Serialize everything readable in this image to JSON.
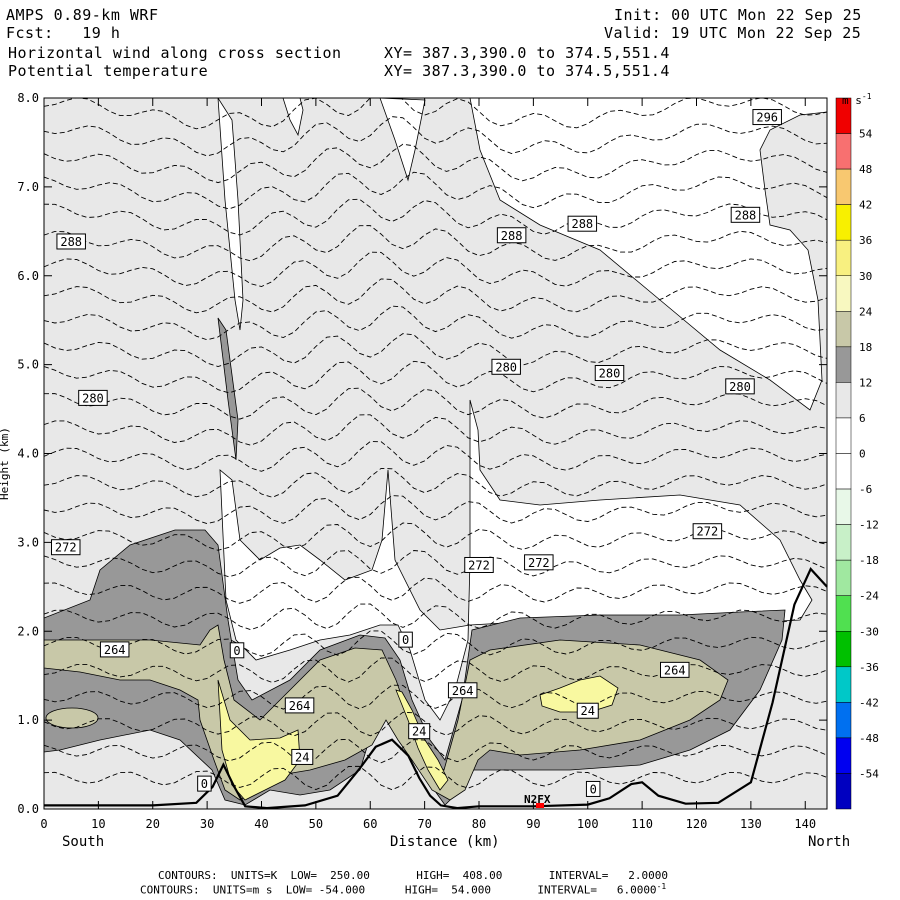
{
  "header": {
    "model": "AMPS 0.89-km WRF",
    "fcst": "Fcst:   19 h",
    "init": "Init: 00 UTC Mon 22 Sep 25",
    "valid": "Valid: 19 UTC Mon 22 Sep 25",
    "field1": "Horizontal wind along cross section",
    "field2": "Potential temperature",
    "xy1": "XY= 387.3,390.0 to 374.5,551.4",
    "xy2": "XY= 387.3,390.0 to 374.5,551.4"
  },
  "axis": {
    "xlabel": "Distance (km)",
    "left_end": "South",
    "right_end": "North",
    "ylabel": "Height (km)"
  },
  "colorbar": {
    "unit": "m s",
    "unit_exp": "-1",
    "labels": [
      "54",
      "48",
      "42",
      "36",
      "30",
      "24",
      "18",
      "12",
      "6",
      "0",
      "-6",
      "-12",
      "-18",
      "-24",
      "-30",
      "-36",
      "-42",
      "-48",
      "-54"
    ],
    "colors": [
      "#f00000",
      "#f87070",
      "#f8c870",
      "#f8f000",
      "#f8f080",
      "#f8f8c0",
      "#c8c8a8",
      "#989898",
      "#e8e8e8",
      "#ffffff",
      "#ffffff",
      "#e8f8e8",
      "#c8f0c8",
      "#a0e8a0",
      "#50e050",
      "#00c000",
      "#00c8c8",
      "#0070f0",
      "#0000f0",
      "#0000c0"
    ]
  },
  "station": "N2FX",
  "footer": {
    "line1": "CONTOURS:  UNITS=K  LOW=  250.00       HIGH=  408.00       INTERVAL=   2.0000",
    "line2": "CONTOURS:  UNITS=m s  LOW= -54.000      HIGH=  54.000       INTERVAL=   6.0000",
    "line2_exp": "-1"
  },
  "chart_data": {
    "type": "cross-section contour",
    "xlabel": "Distance (km)",
    "ylabel": "Height (km)",
    "xlim": [
      0,
      144
    ],
    "ylim": [
      0,
      8
    ],
    "x_ticks": [
      0,
      10,
      20,
      30,
      40,
      50,
      60,
      70,
      80,
      90,
      100,
      110,
      120,
      130,
      140
    ],
    "y_ticks": [
      "0.0",
      "1.0",
      "2.0",
      "3.0",
      "4.0",
      "5.0",
      "6.0",
      "7.0",
      "8.0"
    ],
    "theta_labels": [
      {
        "text": "296",
        "x": 133,
        "y": 7.78
      },
      {
        "text": "288",
        "x": 5,
        "y": 6.38
      },
      {
        "text": "288",
        "x": 86,
        "y": 6.45
      },
      {
        "text": "288",
        "x": 99,
        "y": 6.58
      },
      {
        "text": "288",
        "x": 129,
        "y": 6.68
      },
      {
        "text": "280",
        "x": 9,
        "y": 4.62
      },
      {
        "text": "280",
        "x": 85,
        "y": 4.97
      },
      {
        "text": "280",
        "x": 104,
        "y": 4.9
      },
      {
        "text": "280",
        "x": 128,
        "y": 4.75
      },
      {
        "text": "272",
        "x": 4,
        "y": 2.94
      },
      {
        "text": "272",
        "x": 80,
        "y": 2.74
      },
      {
        "text": "272",
        "x": 91,
        "y": 2.77
      },
      {
        "text": "272",
        "x": 122,
        "y": 3.12
      },
      {
        "text": "264",
        "x": 13,
        "y": 1.79
      },
      {
        "text": "264",
        "x": 47,
        "y": 1.16
      },
      {
        "text": "264",
        "x": 77,
        "y": 1.33
      },
      {
        "text": "264",
        "x": 116,
        "y": 1.56
      }
    ],
    "wind_labels": [
      {
        "text": "0",
        "x": 35.5,
        "y": 1.78
      },
      {
        "text": "0",
        "x": 66.5,
        "y": 1.9
      },
      {
        "text": "0",
        "x": 29.5,
        "y": 0.28
      },
      {
        "text": "0",
        "x": 101,
        "y": 0.22
      },
      {
        "text": "24",
        "x": 47.5,
        "y": 0.58
      },
      {
        "text": "24",
        "x": 69,
        "y": 0.87
      },
      {
        "text": "24",
        "x": 100,
        "y": 1.1
      }
    ],
    "terrain": [
      [
        0,
        0.04
      ],
      [
        20,
        0.04
      ],
      [
        28,
        0.07
      ],
      [
        31,
        0.25
      ],
      [
        33,
        0.5
      ],
      [
        35,
        0.25
      ],
      [
        37,
        0.03
      ],
      [
        41,
        0.01
      ],
      [
        48,
        0.04
      ],
      [
        54,
        0.15
      ],
      [
        58,
        0.45
      ],
      [
        61,
        0.7
      ],
      [
        64,
        0.78
      ],
      [
        67,
        0.6
      ],
      [
        69,
        0.35
      ],
      [
        71,
        0.15
      ],
      [
        73,
        0.04
      ],
      [
        76,
        0.01
      ],
      [
        80,
        0.03
      ],
      [
        90,
        0.03
      ],
      [
        100,
        0.05
      ],
      [
        104,
        0.12
      ],
      [
        108,
        0.28
      ],
      [
        110,
        0.3
      ],
      [
        113,
        0.15
      ],
      [
        118,
        0.06
      ],
      [
        124,
        0.07
      ],
      [
        130,
        0.3
      ],
      [
        134,
        1.2
      ],
      [
        138,
        2.3
      ],
      [
        141,
        2.7
      ],
      [
        144,
        2.5
      ]
    ]
  }
}
